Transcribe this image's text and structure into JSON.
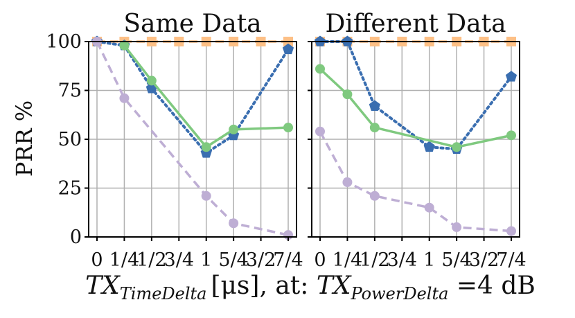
{
  "chart_data": [
    {
      "type": "line",
      "title": "Same Data",
      "ylabel": "PRR %",
      "ylim": [
        0,
        100
      ],
      "yticks": [
        0,
        25,
        50,
        75,
        100
      ],
      "x": [
        0,
        0.25,
        0.5,
        0.75,
        1,
        1.25,
        1.5,
        1.75
      ],
      "xtick_labels": [
        "0",
        "1/4",
        "1/2",
        "3/4",
        "1",
        "5/4",
        "3/2",
        "7/4"
      ],
      "grid": true,
      "series": [
        {
          "color": "#fdc086",
          "style": "dashed",
          "marker": "square",
          "x": [
            0,
            0.25,
            0.5,
            0.75,
            1,
            1.25,
            1.5,
            1.75
          ],
          "values": [
            100,
            100,
            100,
            100,
            100,
            100,
            100,
            100
          ]
        },
        {
          "color": "#3a6eb0",
          "style": "dotted",
          "marker": "pentagon",
          "x": [
            0,
            0.25,
            0.5,
            1,
            1.25,
            1.75
          ],
          "values": [
            100,
            98,
            76,
            43,
            52,
            96
          ]
        },
        {
          "color": "#7fc97f",
          "style": "solid",
          "marker": "circle",
          "x": [
            0.25,
            0.5,
            1,
            1.25,
            1.75
          ],
          "values": [
            98,
            80,
            46,
            55,
            56
          ]
        },
        {
          "color": "#beaed4",
          "style": "dashed",
          "marker": "circle",
          "x": [
            0,
            0.25,
            1,
            1.25,
            1.75
          ],
          "values": [
            100,
            71,
            21,
            7,
            1
          ]
        }
      ]
    },
    {
      "type": "line",
      "title": "Different Data",
      "ylim": [
        0,
        100
      ],
      "yticks": [
        0,
        25,
        50,
        75,
        100
      ],
      "x": [
        0,
        0.25,
        0.5,
        0.75,
        1,
        1.25,
        1.5,
        1.75
      ],
      "xtick_labels": [
        "0",
        "1/4",
        "1/2",
        "3/4",
        "1",
        "5/4",
        "3/2",
        "7/4"
      ],
      "grid": true,
      "series": [
        {
          "color": "#fdc086",
          "style": "dashed",
          "marker": "square",
          "x": [
            0,
            0.25,
            0.5,
            0.75,
            1,
            1.25,
            1.5,
            1.75
          ],
          "values": [
            100,
            100,
            100,
            100,
            100,
            100,
            100,
            100
          ]
        },
        {
          "color": "#3a6eb0",
          "style": "dotted",
          "marker": "pentagon",
          "x": [
            0,
            0.25,
            0.5,
            1,
            1.25,
            1.75
          ],
          "values": [
            100,
            100,
            67,
            46,
            45,
            82
          ]
        },
        {
          "color": "#7fc97f",
          "style": "solid",
          "marker": "circle",
          "x": [
            0,
            0.25,
            0.5,
            1.25,
            1.75
          ],
          "values": [
            86,
            73,
            56,
            46,
            52
          ]
        },
        {
          "color": "#beaed4",
          "style": "dashed",
          "marker": "circle",
          "x": [
            0,
            0.25,
            0.5,
            1,
            1.25,
            1.75
          ],
          "values": [
            54,
            28,
            21,
            15,
            5,
            3
          ]
        }
      ]
    }
  ],
  "xlabel": {
    "var1": "TX",
    "sub1": "TimeDelta",
    "unit": "[μs]",
    "mid": ", at: ",
    "var2": "TX",
    "sub2": "PowerDelta",
    "eq": " =4 dB"
  }
}
